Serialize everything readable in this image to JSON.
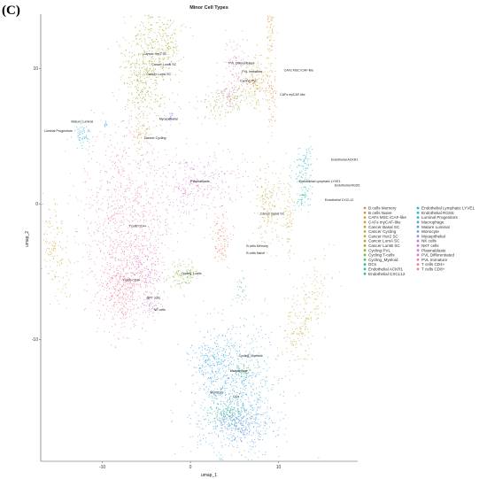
{
  "panel_label": "(C)",
  "chart_data": {
    "type": "scatter",
    "title": "Minor Cell Types",
    "xlabel": "umap_1",
    "ylabel": "umap_2",
    "xlim": [
      -17,
      19
    ],
    "ylim": [
      -19,
      14
    ],
    "x_ticks": [
      -10,
      0,
      10
    ],
    "y_ticks": [
      -10,
      0,
      10
    ],
    "tick_labels": {
      "x": [
        "-10",
        "0",
        "10"
      ],
      "y": [
        "-10",
        "0",
        "10"
      ]
    },
    "grid": false,
    "legend_position": "right",
    "legend_columns": 2,
    "categories": [
      {
        "name": "B cells Memory",
        "color": "#E8836B"
      },
      {
        "name": "B cells Naive",
        "color": "#E58A5E"
      },
      {
        "name": "CAFs MSC iCAF-like",
        "color": "#DB9A3B"
      },
      {
        "name": "CAFs myCAF-like",
        "color": "#D89F39"
      },
      {
        "name": "Cancer Basal SC",
        "color": "#C8A73A"
      },
      {
        "name": "Cancer Cycling",
        "color": "#C1AC3E"
      },
      {
        "name": "Cancer Her2 SC",
        "color": "#B7B03A"
      },
      {
        "name": "Cancer LumA SC",
        "color": "#ABAE35"
      },
      {
        "name": "Cancer LumB SC",
        "color": "#A4A633"
      },
      {
        "name": "Cycling PVL",
        "color": "#8FB23C"
      },
      {
        "name": "Cycling T-cells",
        "color": "#77B944"
      },
      {
        "name": "Cycling_Myeloid",
        "color": "#55BD6A"
      },
      {
        "name": "DCs",
        "color": "#36BD8C"
      },
      {
        "name": "Endothelial ACKR1",
        "color": "#2FBFA2"
      },
      {
        "name": "Endothelial CXCL12",
        "color": "#2ABDB5"
      },
      {
        "name": "Endothelial Lymphatic LYVE1",
        "color": "#25BBC4"
      },
      {
        "name": "Endothelial RGS5",
        "color": "#2CB8D2"
      },
      {
        "name": "Luminal Progenitors",
        "color": "#34B2DE"
      },
      {
        "name": "Macrophage",
        "color": "#42AAE5"
      },
      {
        "name": "Mature Luminal",
        "color": "#5BA0E9"
      },
      {
        "name": "Monocyte",
        "color": "#7795EA"
      },
      {
        "name": "Myoepithelial",
        "color": "#968AE8"
      },
      {
        "name": "NK cells",
        "color": "#B280E2"
      },
      {
        "name": "NKT cells",
        "color": "#C77ADB"
      },
      {
        "name": "Plasmablasts",
        "color": "#D878D0"
      },
      {
        "name": "PVL Differentiated",
        "color": "#E176C0"
      },
      {
        "name": "PVL Immature",
        "color": "#E77AAE"
      },
      {
        "name": "T cells CD4+",
        "color": "#EA7E9F"
      },
      {
        "name": "T cells CD8+",
        "color": "#EC8492"
      }
    ],
    "cluster_labels": [
      {
        "text": "Cancer Her2 SC",
        "x": -4.0,
        "y": 11.0
      },
      {
        "text": "Cancer LumB SC",
        "x": -3.0,
        "y": 10.2
      },
      {
        "text": "Cancer LumA SC",
        "x": -3.6,
        "y": 9.5
      },
      {
        "text": "PVL Differentiated",
        "x": 5.8,
        "y": 10.3
      },
      {
        "text": "PVL Immature",
        "x": 7.0,
        "y": 9.7
      },
      {
        "text": "Cycling PVL",
        "x": 6.6,
        "y": 9.0
      },
      {
        "text": "CAFs MSC iCAF-like",
        "x": 12.3,
        "y": 9.8
      },
      {
        "text": "CAFs myCAF-like",
        "x": 11.6,
        "y": 8.0
      },
      {
        "text": "Mature Luminal",
        "x": -12.3,
        "y": 6.0
      },
      {
        "text": "Luminal Progenitors",
        "x": -15.0,
        "y": 5.3
      },
      {
        "text": "Myoepithelial",
        "x": -2.5,
        "y": 6.2
      },
      {
        "text": "Cancer Cycling",
        "x": -4.0,
        "y": 4.8
      },
      {
        "text": "Endothelial ACKR1",
        "x": 17.5,
        "y": 3.2
      },
      {
        "text": "Endothelial Lymphatic LYVE1",
        "x": 14.7,
        "y": 1.6
      },
      {
        "text": "Endothelial RGS5",
        "x": 17.8,
        "y": 1.3
      },
      {
        "text": "Endothelial CXCL12",
        "x": 16.9,
        "y": 0.2
      },
      {
        "text": "Plasmablasts",
        "x": 1.1,
        "y": 1.6
      },
      {
        "text": "Cancer Basal SC",
        "x": 9.3,
        "y": -0.8
      },
      {
        "text": "T cells CD4+",
        "x": -6.0,
        "y": -1.7
      },
      {
        "text": "B cells Memory",
        "x": 7.6,
        "y": -3.2
      },
      {
        "text": "B cells Naive",
        "x": 7.4,
        "y": -3.7
      },
      {
        "text": "Cycling T-cells",
        "x": 0.1,
        "y": -5.2
      },
      {
        "text": "T cells CD8+",
        "x": -6.7,
        "y": -5.7
      },
      {
        "text": "NKT cells",
        "x": -4.2,
        "y": -7.0
      },
      {
        "text": "NK cells",
        "x": -3.5,
        "y": -7.9
      },
      {
        "text": "Cycling_Myeloid",
        "x": 6.8,
        "y": -11.3
      },
      {
        "text": "Macrophage",
        "x": 5.5,
        "y": -12.4
      },
      {
        "text": "Monocyte",
        "x": 3.0,
        "y": -14.0
      },
      {
        "text": "DCs",
        "x": 5.2,
        "y": -14.3
      }
    ]
  }
}
